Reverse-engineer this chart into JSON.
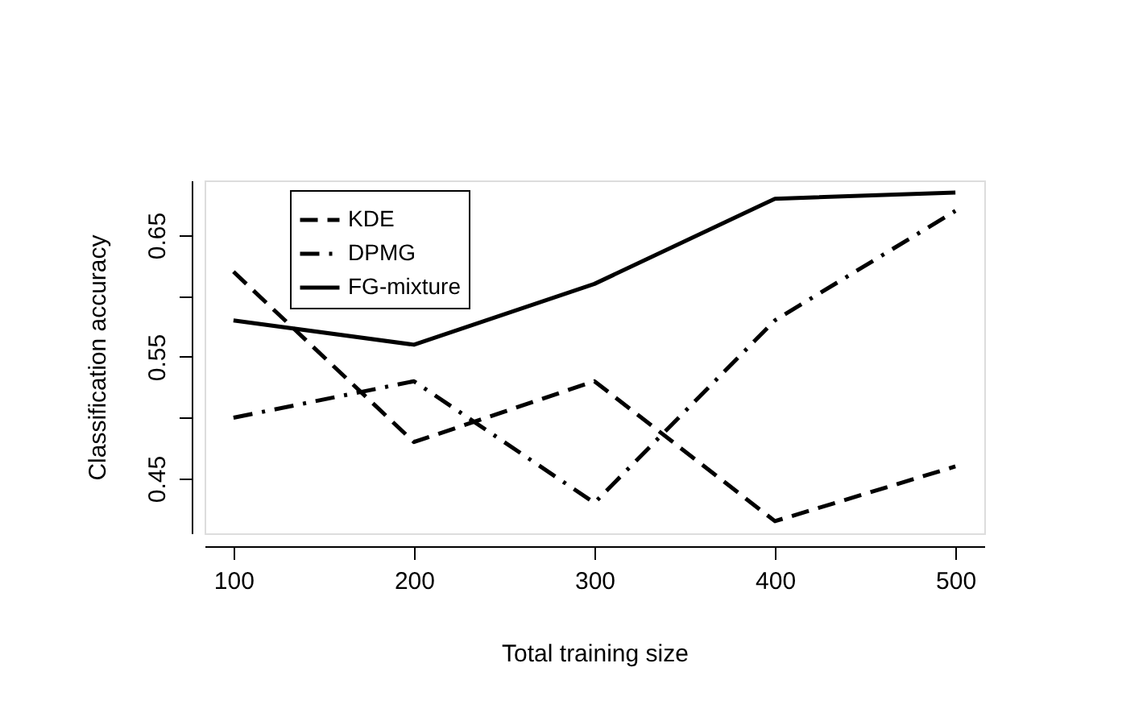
{
  "chart_data": {
    "type": "line",
    "xlabel": "Total training size",
    "ylabel": "Classification accuracy",
    "x": [
      100,
      200,
      300,
      400,
      500
    ],
    "series": [
      {
        "name": "KDE",
        "color": "#000000",
        "line_style": "dashed",
        "values": [
          0.62,
          0.48,
          0.53,
          0.415,
          0.46
        ]
      },
      {
        "name": "DPMG",
        "color": "#000000",
        "line_style": "dashdot",
        "values": [
          0.5,
          0.53,
          0.43,
          0.58,
          0.67
        ]
      },
      {
        "name": "FG-mixture",
        "color": "#000000",
        "line_style": "solid",
        "values": [
          0.58,
          0.56,
          0.61,
          0.68,
          0.685
        ]
      }
    ],
    "xlim": [
      84,
      516
    ],
    "xticks": [
      100,
      200,
      300,
      400,
      500
    ],
    "ylim": [
      0.405,
      0.695
    ],
    "yticks": [
      0.45,
      {
        "value": 0.5,
        "label": null
      },
      0.55,
      {
        "value": 0.6,
        "label": null
      },
      0.65
    ],
    "grid": false,
    "legend": "top left",
    "marker": "none"
  }
}
